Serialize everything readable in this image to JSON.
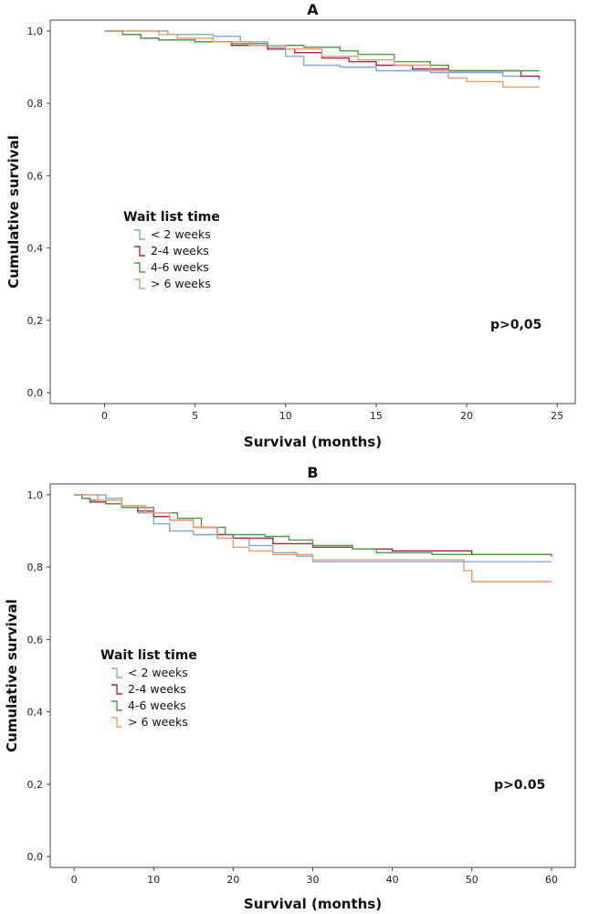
{
  "colors": {
    "lt2": "#7ba7df",
    "w24": "#a8244b",
    "w46": "#4e9a45",
    "gt6": "#ee9a6a"
  },
  "chart_data": [
    {
      "type": "line",
      "step": true,
      "title": "A",
      "xlabel": "Survival (months)",
      "ylabel": "Cumulative survival",
      "xlim": [
        -3,
        26
      ],
      "ylim": [
        -0.03,
        1.03
      ],
      "xticks": [
        0,
        5,
        10,
        15,
        20,
        25
      ],
      "xtick_labels": [
        "0",
        "5",
        "10",
        "15",
        "20",
        "25"
      ],
      "yticks": [
        0.0,
        0.2,
        0.4,
        0.6,
        0.8,
        1.0
      ],
      "ytick_labels": [
        "0,0",
        "0,2",
        "0,4",
        "0,6",
        "0,8",
        "1,0"
      ],
      "legend_title": "Wait list time",
      "legend_position": "center-left",
      "annotation": "p>0,05",
      "series": [
        {
          "name": "< 2 weeks",
          "color_key": "lt2",
          "x": [
            0,
            1.5,
            3.5,
            6,
            7.5,
            9,
            10,
            11,
            13,
            15,
            18,
            22,
            24
          ],
          "y": [
            1.0,
            1.0,
            0.99,
            0.985,
            0.97,
            0.955,
            0.93,
            0.905,
            0.9,
            0.89,
            0.885,
            0.875,
            0.865
          ]
        },
        {
          "name": "2-4 weeks",
          "color_key": "w24",
          "x": [
            0,
            1,
            2,
            3,
            5,
            7,
            9,
            10.5,
            12,
            13.5,
            15,
            17,
            19,
            23,
            24
          ],
          "y": [
            1.0,
            0.99,
            0.98,
            0.975,
            0.97,
            0.96,
            0.95,
            0.94,
            0.925,
            0.915,
            0.905,
            0.895,
            0.89,
            0.875,
            0.87
          ]
        },
        {
          "name": "4-6 weeks",
          "color_key": "w46",
          "x": [
            0,
            1,
            2,
            3,
            5,
            7,
            9,
            11,
            13,
            14,
            16,
            18,
            19,
            22,
            24
          ],
          "y": [
            1.0,
            0.99,
            0.98,
            0.975,
            0.97,
            0.965,
            0.96,
            0.955,
            0.945,
            0.935,
            0.915,
            0.905,
            0.89,
            0.89,
            0.89
          ]
        },
        {
          "name": "> 6 weeks",
          "color_key": "gt6",
          "x": [
            0,
            3,
            4,
            6,
            8,
            10,
            12,
            14,
            16,
            18,
            19,
            20,
            22,
            24
          ],
          "y": [
            1.0,
            0.99,
            0.98,
            0.97,
            0.96,
            0.95,
            0.93,
            0.92,
            0.905,
            0.89,
            0.87,
            0.86,
            0.845,
            0.845
          ]
        }
      ]
    },
    {
      "type": "line",
      "step": true,
      "title": "B",
      "xlabel": "Survival (months)",
      "ylabel": "Cumulative survival",
      "xlim": [
        -3,
        63
      ],
      "ylim": [
        -0.03,
        1.03
      ],
      "xticks": [
        0,
        10,
        20,
        30,
        40,
        50,
        60
      ],
      "xtick_labels": [
        "0",
        "10",
        "20",
        "30",
        "40",
        "50",
        "60"
      ],
      "yticks": [
        0.0,
        0.2,
        0.4,
        0.6,
        0.8,
        1.0
      ],
      "ytick_labels": [
        "0,0",
        "0,2",
        "0,4",
        "0,6",
        "0,8",
        "1,0"
      ],
      "legend_title": "Wait list time",
      "legend_position": "center-left",
      "annotation": "p>0.05",
      "series": [
        {
          "name": "< 2 weeks",
          "color_key": "lt2",
          "x": [
            0,
            4,
            6,
            8,
            10,
            12,
            15,
            18,
            22,
            25,
            28,
            30,
            50,
            60
          ],
          "y": [
            1.0,
            0.99,
            0.97,
            0.95,
            0.92,
            0.9,
            0.89,
            0.88,
            0.86,
            0.84,
            0.83,
            0.815,
            0.815,
            0.815
          ]
        },
        {
          "name": "2-4 weeks",
          "color_key": "w24",
          "x": [
            0,
            1,
            2,
            4,
            6,
            8,
            10,
            12,
            15,
            18,
            20,
            25,
            30,
            35,
            40,
            50,
            60
          ],
          "y": [
            1.0,
            0.99,
            0.98,
            0.975,
            0.965,
            0.955,
            0.94,
            0.93,
            0.91,
            0.89,
            0.88,
            0.865,
            0.855,
            0.85,
            0.845,
            0.835,
            0.83
          ]
        },
        {
          "name": "4-6 weeks",
          "color_key": "w46",
          "x": [
            0,
            1,
            2,
            4,
            6,
            10,
            13,
            16,
            19,
            24,
            27,
            30,
            35,
            38,
            45,
            60
          ],
          "y": [
            1.0,
            0.99,
            0.985,
            0.975,
            0.965,
            0.95,
            0.935,
            0.91,
            0.89,
            0.885,
            0.875,
            0.86,
            0.85,
            0.84,
            0.835,
            0.835
          ]
        },
        {
          "name": "> 6 weeks",
          "color_key": "gt6",
          "x": [
            0,
            3,
            6,
            9,
            12,
            15,
            18,
            20,
            22,
            25,
            30,
            49,
            50,
            60
          ],
          "y": [
            1.0,
            0.985,
            0.97,
            0.95,
            0.93,
            0.91,
            0.88,
            0.855,
            0.845,
            0.835,
            0.82,
            0.79,
            0.76,
            0.76
          ]
        }
      ]
    }
  ]
}
